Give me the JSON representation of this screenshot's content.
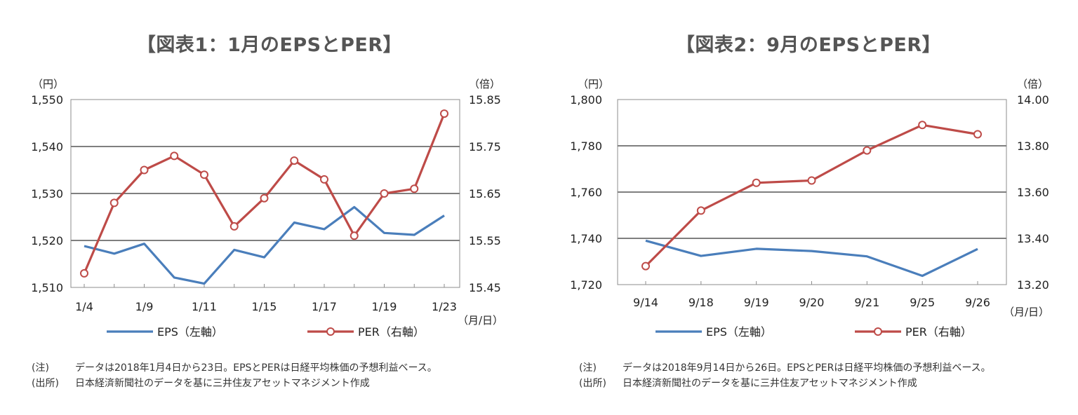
{
  "chart_data": [
    {
      "type": "line",
      "title": "【図表1：1月のEPSとPER】",
      "y_left_unit": "（円）",
      "y_right_unit": "（倍）",
      "x_unit": "（月/日）",
      "ylim_left": [
        1510,
        1550
      ],
      "yticks_left": [
        "1,510",
        "1,520",
        "1,530",
        "1,540",
        "1,550"
      ],
      "ylim_right": [
        15.45,
        15.85
      ],
      "yticks_right": [
        "15.45",
        "15.55",
        "15.65",
        "15.75",
        "15.85"
      ],
      "x_tick_labels": [
        "1/4",
        "1/9",
        "1/11",
        "1/15",
        "1/17",
        "1/19",
        "1/23"
      ],
      "x_tick_positions": [
        0,
        2,
        4,
        6,
        8,
        10,
        12
      ],
      "n_points": 13,
      "series": [
        {
          "name": "EPS（左軸）",
          "axis": "left",
          "color": "#4A7EBB",
          "marker": false,
          "values": [
            1518.8,
            1517.2,
            1519.3,
            1512.1,
            1510.8,
            1518.0,
            1516.4,
            1523.8,
            1522.4,
            1527.1,
            1521.6,
            1521.2,
            1525.3
          ]
        },
        {
          "name": "PER（右軸）",
          "axis": "right",
          "color": "#BE4B48",
          "marker": true,
          "values": [
            15.48,
            15.63,
            15.7,
            15.73,
            15.69,
            15.58,
            15.64,
            15.72,
            15.68,
            15.56,
            15.65,
            15.66,
            15.82
          ]
        }
      ],
      "legend": "bottom",
      "note": {
        "note_label": "(注)",
        "note_text": "データは2018年1月4日から23日。EPSとPERは日経平均株価の予想利益ベース。",
        "source_label": "(出所)",
        "source_text": "日本経済新聞社のデータを基に三井住友アセットマネジメント作成"
      }
    },
    {
      "type": "line",
      "title": "【図表2：9月のEPSとPER】",
      "y_left_unit": "（円）",
      "y_right_unit": "（倍）",
      "x_unit": "（月/日）",
      "ylim_left": [
        1720,
        1800
      ],
      "yticks_left": [
        "1,720",
        "1,740",
        "1,760",
        "1,780",
        "1,800"
      ],
      "ylim_right": [
        13.2,
        14.0
      ],
      "yticks_right": [
        "13.20",
        "13.40",
        "13.60",
        "13.80",
        "14.00"
      ],
      "x_tick_labels": [
        "9/14",
        "9/18",
        "9/19",
        "9/20",
        "9/21",
        "9/25",
        "9/26"
      ],
      "x_tick_positions": [
        0,
        1,
        2,
        3,
        4,
        5,
        6
      ],
      "n_points": 7,
      "series": [
        {
          "name": "EPS（左軸）",
          "axis": "left",
          "color": "#4A7EBB",
          "marker": false,
          "values": [
            1739.0,
            1732.4,
            1735.5,
            1734.5,
            1732.2,
            1723.8,
            1735.4
          ]
        },
        {
          "name": "PER（右軸）",
          "axis": "right",
          "color": "#BE4B48",
          "marker": true,
          "values": [
            13.28,
            13.52,
            13.64,
            13.65,
            13.78,
            13.89,
            13.85
          ]
        }
      ],
      "legend": "bottom",
      "note": {
        "note_label": "(注)",
        "note_text": "データは2018年9月14日から26日。EPSとPERは日経平均株価の予想利益ベース。",
        "source_label": "(出所)",
        "source_text": "日本経済新聞社のデータを基に三井住友アセットマネジメント作成"
      }
    }
  ]
}
